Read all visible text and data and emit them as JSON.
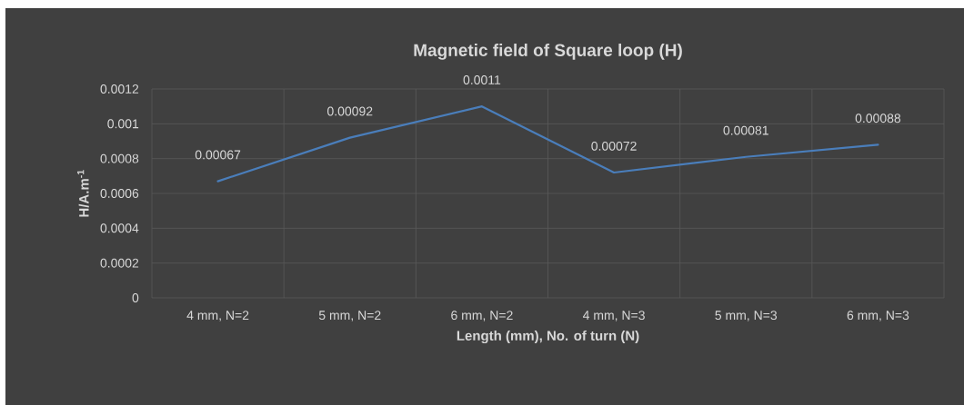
{
  "chart_data": {
    "type": "line",
    "title": "Magnetic field of Square loop (H)",
    "xlabel": "Length (mm), No. of turn (N)",
    "ylabel": "H/A.m$^{-1}$",
    "categories": [
      "4 mm, N=2",
      "5 mm, N=2",
      "6 mm, N=2",
      "4 mm, N=3",
      "5 mm, N=3",
      "6 mm, N=3"
    ],
    "values": [
      0.00067,
      0.00092,
      0.0011,
      0.00072,
      0.00081,
      0.00088
    ],
    "color": "#4a7ebb",
    "data_labels": true,
    "grid": true,
    "marker": "none",
    "line_style": "solid",
    "ylim": [
      0,
      0.0012
    ],
    "yticks": [
      0,
      0.0002,
      0.0004,
      0.0006,
      0.0008,
      0.001,
      0.0012
    ]
  }
}
